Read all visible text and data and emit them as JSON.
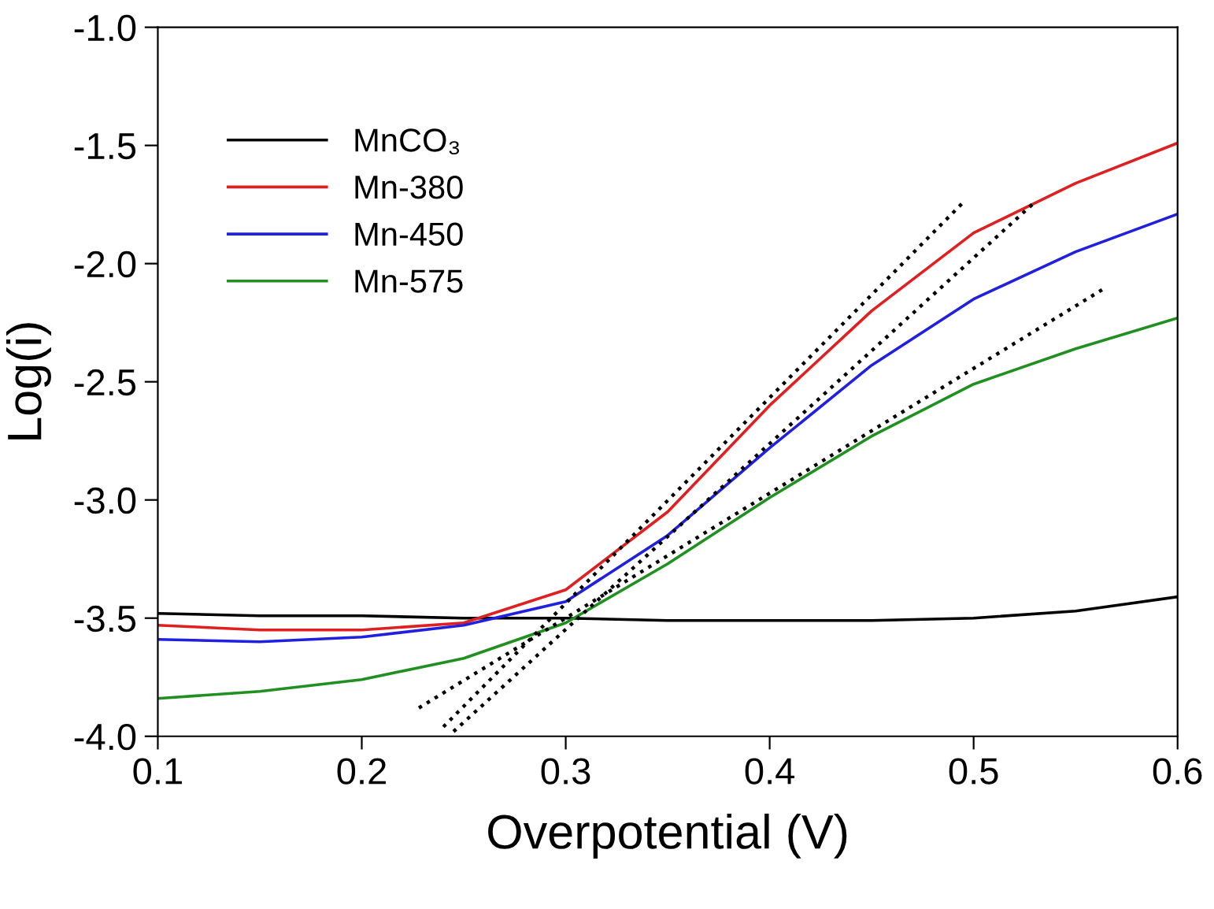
{
  "chart_data": {
    "type": "line",
    "xlabel": "Overpotential (V)",
    "ylabel": "Log(i)",
    "x": [
      0.1,
      0.15,
      0.2,
      0.25,
      0.3,
      0.35,
      0.4,
      0.45,
      0.5,
      0.55,
      0.6
    ],
    "series": [
      {
        "name": "MnCO₃",
        "color": "#000000",
        "values": [
          -3.48,
          -3.49,
          -3.49,
          -3.5,
          -3.5,
          -3.51,
          -3.51,
          -3.51,
          -3.5,
          -3.47,
          -3.41
        ]
      },
      {
        "name": "Mn-380",
        "color": "#e02020",
        "values": [
          -3.53,
          -3.55,
          -3.55,
          -3.52,
          -3.38,
          -3.05,
          -2.6,
          -2.2,
          -1.87,
          -1.66,
          -1.49
        ]
      },
      {
        "name": "Mn-450",
        "color": "#2020e0",
        "values": [
          -3.59,
          -3.6,
          -3.58,
          -3.53,
          -3.43,
          -3.15,
          -2.78,
          -2.43,
          -2.15,
          -1.95,
          -1.79
        ]
      },
      {
        "name": "Mn-575",
        "color": "#209020",
        "values": [
          -3.84,
          -3.81,
          -3.76,
          -3.67,
          -3.52,
          -3.27,
          -2.99,
          -2.73,
          -2.51,
          -2.36,
          -2.23
        ]
      },
      {
        "color": "#000000",
        "line_style": "dotted",
        "x": [
          0.24,
          0.495
        ],
        "values": [
          -3.96,
          -1.74
        ]
      },
      {
        "color": "#000000",
        "line_style": "dotted",
        "x": [
          0.245,
          0.53
        ],
        "values": [
          -3.98,
          -1.74
        ]
      },
      {
        "color": "#000000",
        "line_style": "dotted",
        "x": [
          0.228,
          0.565
        ],
        "values": [
          -3.88,
          -2.1
        ]
      }
    ],
    "xlim": [
      0.1,
      0.6
    ],
    "xticks": [
      0.1,
      0.2,
      0.3,
      0.4,
      0.5,
      0.6
    ],
    "ylim": [
      -4.0,
      -1.0
    ],
    "yticks": [
      {
        "value": -4.0,
        "label": "-4.0"
      },
      {
        "value": -3.5,
        "label": "-3.5"
      },
      {
        "value": -3.0,
        "label": "-3.0"
      },
      {
        "value": -2.5,
        "label": "-2.5"
      },
      {
        "value": -2.0,
        "label": "-2.0"
      },
      {
        "value": -1.5,
        "label": "-1.5"
      },
      {
        "value": -1.0,
        "label": "-1.0"
      }
    ],
    "grid": false,
    "legend": "top left",
    "marker": "none",
    "line_style": "solid"
  }
}
